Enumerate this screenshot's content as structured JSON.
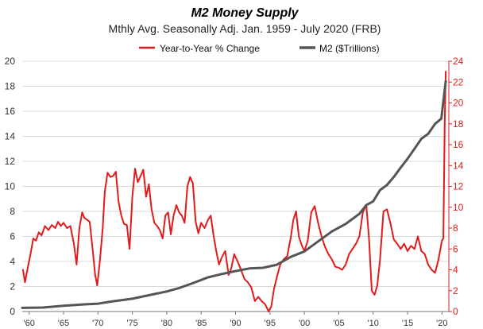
{
  "chart_data": {
    "type": "line",
    "title": "M2 Money Supply",
    "subtitle": "Mthly Avg. Seasonally Adj. Jan. 1959 - July 2020  (FRB)",
    "legend_placement": "top-right",
    "grid": true,
    "x_tick_labels": [
      "'60",
      "'65",
      "'70",
      "'75",
      "'80",
      "'85",
      "'90",
      "'95",
      "'00",
      "'05",
      "'10",
      "'15",
      "'20"
    ],
    "x_tick_years": [
      1960,
      1965,
      1970,
      1975,
      1980,
      1985,
      1990,
      1995,
      2000,
      2005,
      2010,
      2015,
      2020
    ],
    "xlim": [
      1959,
      2021
    ],
    "y_left": {
      "label": "",
      "lim": [
        0,
        20
      ],
      "ticks": [
        0,
        2,
        4,
        6,
        8,
        10,
        12,
        14,
        16,
        18,
        20
      ],
      "color": "#333333"
    },
    "y_right": {
      "label": "",
      "lim": [
        0,
        24
      ],
      "ticks": [
        0,
        2,
        4,
        6,
        8,
        10,
        12,
        14,
        16,
        18,
        20,
        22,
        24
      ],
      "color": "#e01b1b"
    },
    "series": [
      {
        "name": "Year-to-Year % Change",
        "axis": "right",
        "color": "#e01b1b",
        "x": [
          1959.1,
          1959.4,
          1959.8,
          1960.2,
          1960.6,
          1961.0,
          1961.4,
          1961.8,
          1962.3,
          1962.8,
          1963.3,
          1963.8,
          1964.2,
          1964.6,
          1965.0,
          1965.5,
          1966.0,
          1966.5,
          1966.9,
          1967.3,
          1967.7,
          1968.0,
          1968.4,
          1968.8,
          1969.2,
          1969.6,
          1969.9,
          1970.3,
          1970.7,
          1971.0,
          1971.4,
          1971.8,
          1972.2,
          1972.6,
          1973.0,
          1973.4,
          1973.8,
          1974.2,
          1974.6,
          1975.0,
          1975.4,
          1975.8,
          1976.2,
          1976.6,
          1977.0,
          1977.4,
          1977.8,
          1978.2,
          1978.6,
          1979.0,
          1979.4,
          1979.8,
          1980.2,
          1980.6,
          1981.0,
          1981.4,
          1981.8,
          1982.2,
          1982.6,
          1983.0,
          1983.4,
          1983.8,
          1984.2,
          1984.6,
          1985.0,
          1985.5,
          1986.0,
          1986.4,
          1986.8,
          1987.2,
          1987.6,
          1988.0,
          1988.5,
          1989.0,
          1989.4,
          1989.8,
          1990.3,
          1990.8,
          1991.3,
          1991.8,
          1992.3,
          1992.8,
          1993.3,
          1993.8,
          1994.3,
          1994.8,
          1995.2,
          1995.6,
          1996.0,
          1996.5,
          1997.0,
          1997.5,
          1998.0,
          1998.4,
          1998.8,
          1999.2,
          1999.6,
          2000.0,
          2000.5,
          2001.0,
          2001.5,
          2002.0,
          2002.5,
          2003.0,
          2003.5,
          2004.0,
          2004.5,
          2005.0,
          2005.5,
          2006.0,
          2006.5,
          2007.0,
          2007.5,
          2008.0,
          2008.5,
          2009.0,
          2009.4,
          2009.8,
          2010.2,
          2010.6,
          2011.0,
          2011.5,
          2012.0,
          2012.5,
          2013.0,
          2013.5,
          2014.0,
          2014.5,
          2015.0,
          2015.5,
          2016.0,
          2016.5,
          2017.0,
          2017.5,
          2018.0,
          2018.5,
          2019.0,
          2019.5,
          2020.0,
          2020.2,
          2020.4,
          2020.55
        ],
        "values": [
          4.0,
          2.8,
          4.2,
          5.5,
          7.0,
          6.8,
          7.6,
          7.3,
          8.2,
          7.8,
          8.3,
          8.0,
          8.6,
          8.2,
          8.5,
          8.0,
          8.2,
          6.5,
          4.5,
          8.0,
          9.5,
          9.0,
          8.8,
          8.6,
          6.2,
          3.5,
          2.5,
          5.0,
          8.0,
          11.5,
          13.3,
          12.9,
          13.0,
          13.4,
          10.5,
          9.2,
          8.4,
          8.3,
          6.0,
          11.0,
          13.7,
          12.4,
          13.0,
          13.6,
          11.0,
          12.2,
          9.8,
          8.5,
          8.2,
          7.8,
          7.0,
          9.2,
          9.5,
          7.4,
          9.2,
          10.2,
          9.5,
          9.2,
          8.5,
          12.0,
          12.9,
          12.3,
          8.6,
          7.5,
          8.5,
          8.0,
          8.8,
          9.2,
          7.3,
          5.8,
          4.5,
          5.2,
          5.8,
          3.5,
          4.2,
          5.5,
          4.8,
          4.0,
          3.1,
          2.8,
          2.3,
          1.0,
          1.4,
          1.0,
          0.7,
          0.0,
          0.5,
          2.2,
          3.3,
          4.5,
          5.0,
          5.3,
          7.0,
          8.8,
          9.6,
          7.2,
          6.4,
          5.8,
          6.8,
          9.5,
          10.1,
          8.5,
          7.2,
          6.2,
          5.5,
          5.0,
          4.3,
          4.2,
          4.0,
          4.5,
          5.5,
          6.0,
          6.5,
          7.2,
          9.5,
          10.2,
          7.0,
          2.0,
          1.6,
          2.5,
          5.0,
          9.6,
          9.8,
          8.5,
          6.9,
          6.5,
          6.0,
          6.5,
          5.8,
          6.3,
          6.0,
          7.2,
          5.8,
          5.5,
          4.5,
          4.0,
          3.7,
          5.0,
          6.8,
          7.0,
          18.0,
          23.0
        ],
        "y_axis_ref": "right"
      },
      {
        "name": "M2 ($Trillions)",
        "axis": "left",
        "color": "#555555",
        "x": [
          1959,
          1962,
          1965,
          1968,
          1970,
          1972,
          1975,
          1978,
          1980,
          1982,
          1984,
          1986,
          1988,
          1990,
          1992,
          1994,
          1996,
          1998,
          2000,
          2002,
          2004,
          2006,
          2008,
          2009,
          2010,
          2011,
          2012,
          2013,
          2014,
          2015,
          2016,
          2017,
          2018,
          2019,
          2019.9,
          2020.2,
          2020.55
        ],
        "values": [
          0.29,
          0.32,
          0.46,
          0.57,
          0.63,
          0.8,
          1.02,
          1.37,
          1.6,
          1.91,
          2.31,
          2.73,
          3.0,
          3.23,
          3.44,
          3.49,
          3.74,
          4.36,
          4.8,
          5.6,
          6.4,
          7.0,
          7.8,
          8.5,
          8.8,
          9.7,
          10.1,
          10.75,
          11.5,
          12.2,
          13.0,
          13.8,
          14.2,
          15.0,
          15.4,
          16.8,
          18.4
        ],
        "y_axis_ref": "left"
      }
    ]
  }
}
